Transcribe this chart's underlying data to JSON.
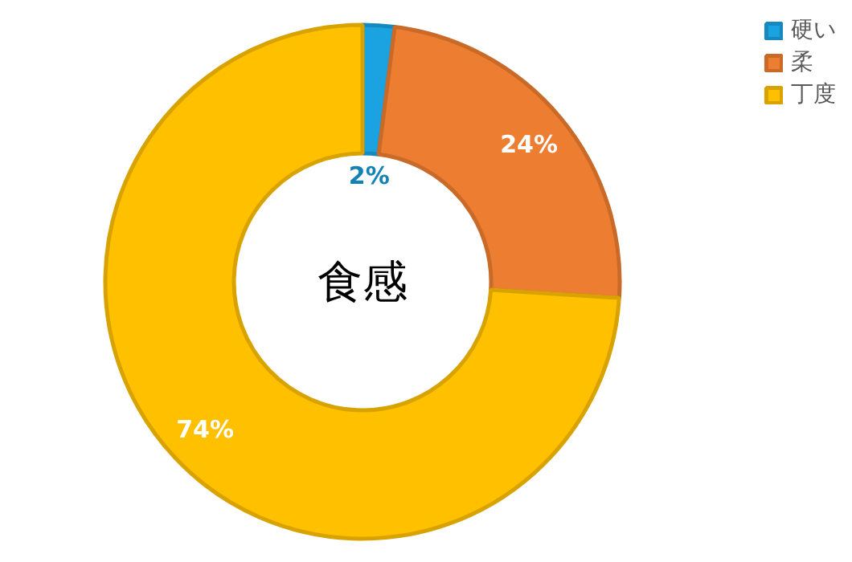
{
  "chart_data": {
    "type": "donut",
    "title": "食感",
    "categories": [
      "硬い",
      "柔",
      "丁度"
    ],
    "values": [
      2,
      24,
      74
    ],
    "colors": [
      "#1aa3e0",
      "#ed7d31",
      "#ffc000"
    ],
    "value_labels": [
      "2%",
      "24%",
      "74%"
    ],
    "legend": "top right"
  }
}
